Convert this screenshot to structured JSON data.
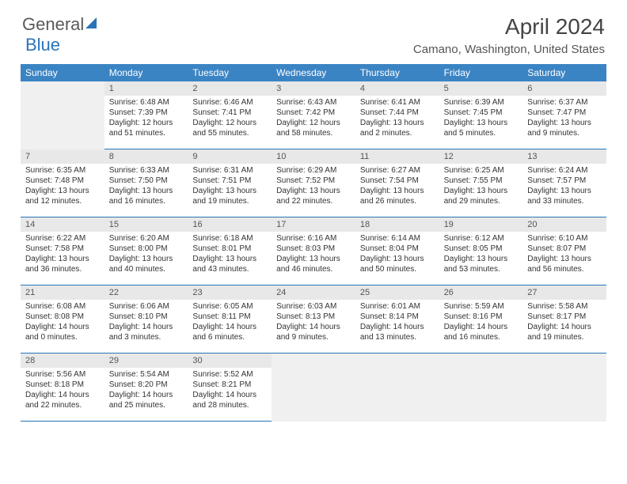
{
  "logo": {
    "text_a": "General",
    "text_b": "Blue"
  },
  "title": "April 2024",
  "location": "Camano, Washington, United States",
  "colors": {
    "header_bg": "#3b84c4",
    "header_text": "#ffffff",
    "daynum_bg": "#e8e8e8",
    "border": "#2a74b8",
    "empty_bg": "#f0f0f0",
    "logo_accent": "#2a74b8"
  },
  "day_names": [
    "Sunday",
    "Monday",
    "Tuesday",
    "Wednesday",
    "Thursday",
    "Friday",
    "Saturday"
  ],
  "weeks": [
    [
      null,
      {
        "n": "1",
        "sr": "Sunrise: 6:48 AM",
        "ss": "Sunset: 7:39 PM",
        "d1": "Daylight: 12 hours",
        "d2": "and 51 minutes."
      },
      {
        "n": "2",
        "sr": "Sunrise: 6:46 AM",
        "ss": "Sunset: 7:41 PM",
        "d1": "Daylight: 12 hours",
        "d2": "and 55 minutes."
      },
      {
        "n": "3",
        "sr": "Sunrise: 6:43 AM",
        "ss": "Sunset: 7:42 PM",
        "d1": "Daylight: 12 hours",
        "d2": "and 58 minutes."
      },
      {
        "n": "4",
        "sr": "Sunrise: 6:41 AM",
        "ss": "Sunset: 7:44 PM",
        "d1": "Daylight: 13 hours",
        "d2": "and 2 minutes."
      },
      {
        "n": "5",
        "sr": "Sunrise: 6:39 AM",
        "ss": "Sunset: 7:45 PM",
        "d1": "Daylight: 13 hours",
        "d2": "and 5 minutes."
      },
      {
        "n": "6",
        "sr": "Sunrise: 6:37 AM",
        "ss": "Sunset: 7:47 PM",
        "d1": "Daylight: 13 hours",
        "d2": "and 9 minutes."
      }
    ],
    [
      {
        "n": "7",
        "sr": "Sunrise: 6:35 AM",
        "ss": "Sunset: 7:48 PM",
        "d1": "Daylight: 13 hours",
        "d2": "and 12 minutes."
      },
      {
        "n": "8",
        "sr": "Sunrise: 6:33 AM",
        "ss": "Sunset: 7:50 PM",
        "d1": "Daylight: 13 hours",
        "d2": "and 16 minutes."
      },
      {
        "n": "9",
        "sr": "Sunrise: 6:31 AM",
        "ss": "Sunset: 7:51 PM",
        "d1": "Daylight: 13 hours",
        "d2": "and 19 minutes."
      },
      {
        "n": "10",
        "sr": "Sunrise: 6:29 AM",
        "ss": "Sunset: 7:52 PM",
        "d1": "Daylight: 13 hours",
        "d2": "and 22 minutes."
      },
      {
        "n": "11",
        "sr": "Sunrise: 6:27 AM",
        "ss": "Sunset: 7:54 PM",
        "d1": "Daylight: 13 hours",
        "d2": "and 26 minutes."
      },
      {
        "n": "12",
        "sr": "Sunrise: 6:25 AM",
        "ss": "Sunset: 7:55 PM",
        "d1": "Daylight: 13 hours",
        "d2": "and 29 minutes."
      },
      {
        "n": "13",
        "sr": "Sunrise: 6:24 AM",
        "ss": "Sunset: 7:57 PM",
        "d1": "Daylight: 13 hours",
        "d2": "and 33 minutes."
      }
    ],
    [
      {
        "n": "14",
        "sr": "Sunrise: 6:22 AM",
        "ss": "Sunset: 7:58 PM",
        "d1": "Daylight: 13 hours",
        "d2": "and 36 minutes."
      },
      {
        "n": "15",
        "sr": "Sunrise: 6:20 AM",
        "ss": "Sunset: 8:00 PM",
        "d1": "Daylight: 13 hours",
        "d2": "and 40 minutes."
      },
      {
        "n": "16",
        "sr": "Sunrise: 6:18 AM",
        "ss": "Sunset: 8:01 PM",
        "d1": "Daylight: 13 hours",
        "d2": "and 43 minutes."
      },
      {
        "n": "17",
        "sr": "Sunrise: 6:16 AM",
        "ss": "Sunset: 8:03 PM",
        "d1": "Daylight: 13 hours",
        "d2": "and 46 minutes."
      },
      {
        "n": "18",
        "sr": "Sunrise: 6:14 AM",
        "ss": "Sunset: 8:04 PM",
        "d1": "Daylight: 13 hours",
        "d2": "and 50 minutes."
      },
      {
        "n": "19",
        "sr": "Sunrise: 6:12 AM",
        "ss": "Sunset: 8:05 PM",
        "d1": "Daylight: 13 hours",
        "d2": "and 53 minutes."
      },
      {
        "n": "20",
        "sr": "Sunrise: 6:10 AM",
        "ss": "Sunset: 8:07 PM",
        "d1": "Daylight: 13 hours",
        "d2": "and 56 minutes."
      }
    ],
    [
      {
        "n": "21",
        "sr": "Sunrise: 6:08 AM",
        "ss": "Sunset: 8:08 PM",
        "d1": "Daylight: 14 hours",
        "d2": "and 0 minutes."
      },
      {
        "n": "22",
        "sr": "Sunrise: 6:06 AM",
        "ss": "Sunset: 8:10 PM",
        "d1": "Daylight: 14 hours",
        "d2": "and 3 minutes."
      },
      {
        "n": "23",
        "sr": "Sunrise: 6:05 AM",
        "ss": "Sunset: 8:11 PM",
        "d1": "Daylight: 14 hours",
        "d2": "and 6 minutes."
      },
      {
        "n": "24",
        "sr": "Sunrise: 6:03 AM",
        "ss": "Sunset: 8:13 PM",
        "d1": "Daylight: 14 hours",
        "d2": "and 9 minutes."
      },
      {
        "n": "25",
        "sr": "Sunrise: 6:01 AM",
        "ss": "Sunset: 8:14 PM",
        "d1": "Daylight: 14 hours",
        "d2": "and 13 minutes."
      },
      {
        "n": "26",
        "sr": "Sunrise: 5:59 AM",
        "ss": "Sunset: 8:16 PM",
        "d1": "Daylight: 14 hours",
        "d2": "and 16 minutes."
      },
      {
        "n": "27",
        "sr": "Sunrise: 5:58 AM",
        "ss": "Sunset: 8:17 PM",
        "d1": "Daylight: 14 hours",
        "d2": "and 19 minutes."
      }
    ],
    [
      {
        "n": "28",
        "sr": "Sunrise: 5:56 AM",
        "ss": "Sunset: 8:18 PM",
        "d1": "Daylight: 14 hours",
        "d2": "and 22 minutes."
      },
      {
        "n": "29",
        "sr": "Sunrise: 5:54 AM",
        "ss": "Sunset: 8:20 PM",
        "d1": "Daylight: 14 hours",
        "d2": "and 25 minutes."
      },
      {
        "n": "30",
        "sr": "Sunrise: 5:52 AM",
        "ss": "Sunset: 8:21 PM",
        "d1": "Daylight: 14 hours",
        "d2": "and 28 minutes."
      },
      null,
      null,
      null,
      null
    ]
  ]
}
